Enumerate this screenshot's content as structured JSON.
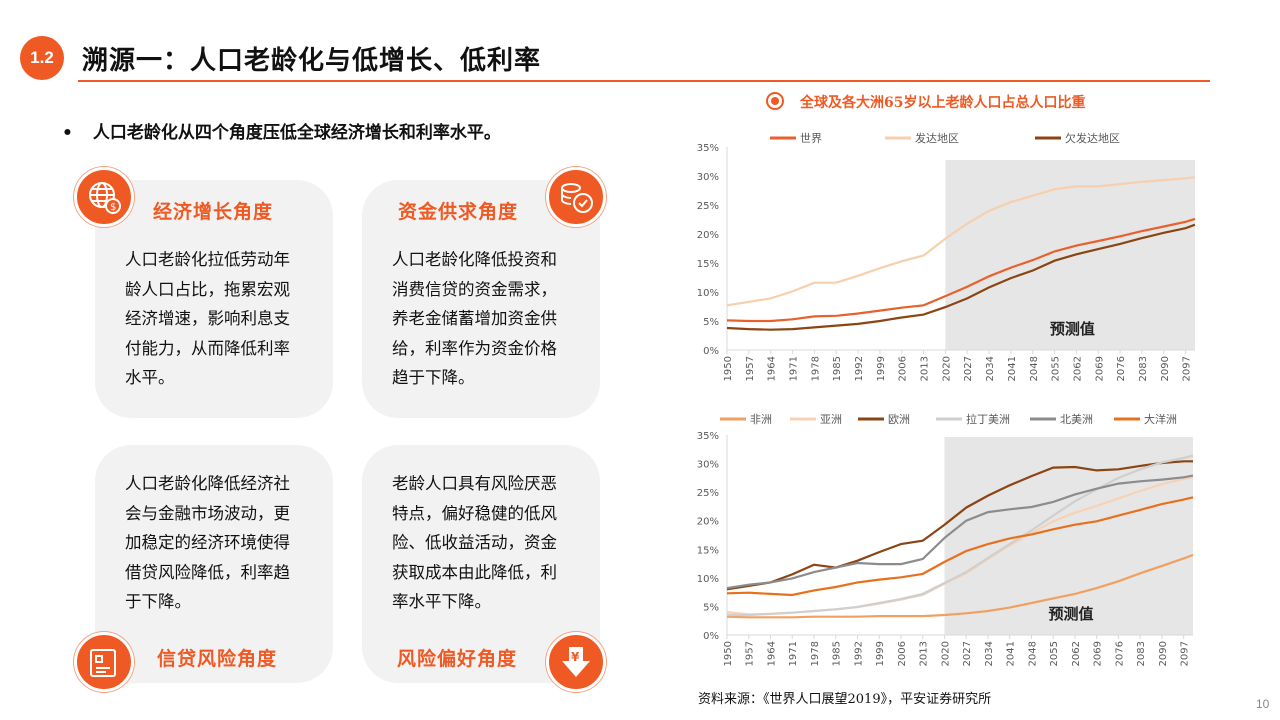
{
  "header": {
    "section": "1.2",
    "title": "溯源一：人口老龄化与低增长、低利率"
  },
  "bullet": "人口老龄化从四个角度压低全球经济增长和利率水平。",
  "cards": [
    {
      "label": "经济增长角度",
      "icon": "globe-dollar-icon",
      "lines": [
        "人口老龄化拉低劳动年",
        "龄人口占比，拖累宏观",
        "经济增速，影响利息支",
        "付能力，从而降低利率",
        "水平。"
      ]
    },
    {
      "label": "资金供求角度",
      "icon": "coins-check-icon",
      "lines": [
        "人口老龄化降低投资和",
        "消费信贷的资金需求，",
        "养老金储蓄增加资金供",
        "给，利率作为资金价格",
        "趋于下降。"
      ]
    },
    {
      "label": "信贷风险角度",
      "icon": "credit-card-icon",
      "lines": [
        "人口老龄化降低经济社",
        "会与金融市场波动，更",
        "加稳定的经济环境使得",
        "借贷风险降低，利率趋",
        "于下降。"
      ]
    },
    {
      "label": "风险偏好角度",
      "icon": "yuan-down-arrow-icon",
      "lines": [
        "老龄人口具有风险厌恶",
        "特点，偏好稳健的低风",
        "险、低收益活动，资金",
        "获取成本由此降低，利",
        "率水平下降。"
      ]
    }
  ],
  "chart_section_title": "全球及各大洲65岁以上老龄人口占总人口比重",
  "chart_data": [
    {
      "type": "line",
      "title": "全球及各大洲65岁以上老龄人口占总人口比重",
      "ylim": [
        0,
        35
      ],
      "yticks": [
        "0%",
        "5%",
        "10%",
        "15%",
        "20%",
        "25%",
        "30%",
        "35%"
      ],
      "xticks": [
        "1950",
        "1957",
        "1964",
        "1971",
        "1978",
        "1985",
        "1992",
        "1999",
        "2006",
        "2013",
        "2020",
        "2027",
        "2034",
        "2041",
        "2048",
        "2055",
        "2062",
        "2069",
        "2076",
        "2083",
        "2090",
        "2097"
      ],
      "x": [
        1950,
        1957,
        1964,
        1971,
        1978,
        1985,
        1992,
        1999,
        2006,
        2013,
        2020,
        2027,
        2034,
        2041,
        2048,
        2055,
        2062,
        2069,
        2076,
        2083,
        2090,
        2097,
        2100
      ],
      "forecast_start": 2020,
      "annotation": "预测值",
      "legend": "top",
      "series": [
        {
          "name": "世界",
          "color": "#e8602c",
          "values": [
            5.1,
            5.0,
            5.0,
            5.3,
            5.8,
            5.9,
            6.3,
            6.8,
            7.3,
            7.7,
            9.3,
            10.9,
            12.7,
            14.2,
            15.5,
            17.0,
            18.0,
            18.8,
            19.6,
            20.5,
            21.3,
            22.1,
            22.6
          ]
        },
        {
          "name": "发达地区",
          "color": "#f6cfae",
          "values": [
            7.7,
            8.3,
            8.9,
            10.1,
            11.6,
            11.6,
            12.8,
            14.1,
            15.3,
            16.3,
            19.2,
            21.8,
            24.0,
            25.5,
            26.6,
            27.7,
            28.2,
            28.2,
            28.6,
            29.0,
            29.3,
            29.6,
            29.8
          ]
        },
        {
          "name": "欠发达地区",
          "color": "#8b4513",
          "values": [
            3.8,
            3.6,
            3.5,
            3.6,
            3.9,
            4.2,
            4.5,
            5.0,
            5.6,
            6.1,
            7.4,
            8.9,
            10.8,
            12.4,
            13.7,
            15.4,
            16.5,
            17.4,
            18.3,
            19.3,
            20.2,
            21.0,
            21.6
          ]
        }
      ]
    },
    {
      "type": "line",
      "ylim": [
        0,
        35
      ],
      "yticks": [
        "0%",
        "5%",
        "10%",
        "15%",
        "20%",
        "25%",
        "30%",
        "35%"
      ],
      "xticks": [
        "1950",
        "1957",
        "1964",
        "1971",
        "1978",
        "1985",
        "1992",
        "1999",
        "2006",
        "2013",
        "2020",
        "2027",
        "2034",
        "2041",
        "2048",
        "2055",
        "2062",
        "2069",
        "2076",
        "2083",
        "2090",
        "2097"
      ],
      "x": [
        1950,
        1957,
        1964,
        1971,
        1978,
        1985,
        1992,
        1999,
        2006,
        2013,
        2020,
        2027,
        2034,
        2041,
        2048,
        2055,
        2062,
        2069,
        2076,
        2083,
        2090,
        2097,
        2100
      ],
      "forecast_start": 2020,
      "annotation": "预测值",
      "legend": "top",
      "series": [
        {
          "name": "非洲",
          "color": "#f0a060",
          "values": [
            3.2,
            3.1,
            3.1,
            3.1,
            3.2,
            3.2,
            3.2,
            3.3,
            3.3,
            3.3,
            3.5,
            3.8,
            4.2,
            4.8,
            5.6,
            6.4,
            7.2,
            8.2,
            9.4,
            10.8,
            12.1,
            13.4,
            14.0
          ]
        },
        {
          "name": "亚洲",
          "color": "#f8d2b4",
          "values": [
            4.0,
            3.6,
            3.7,
            3.9,
            4.2,
            4.5,
            4.9,
            5.5,
            6.2,
            7.0,
            9.0,
            10.8,
            13.3,
            15.7,
            17.8,
            19.9,
            21.4,
            22.6,
            23.9,
            25.2,
            26.4,
            27.3,
            27.6
          ]
        },
        {
          "name": "欧洲",
          "color": "#8b4513",
          "values": [
            8.0,
            8.6,
            9.2,
            10.6,
            12.3,
            11.8,
            13.0,
            14.5,
            15.9,
            16.5,
            19.3,
            22.3,
            24.4,
            26.2,
            27.8,
            29.3,
            29.4,
            28.8,
            29.0,
            29.6,
            30.1,
            30.4,
            30.4
          ]
        },
        {
          "name": "拉丁美洲",
          "color": "#cfcfcf",
          "values": [
            3.5,
            3.5,
            3.7,
            3.9,
            4.2,
            4.5,
            4.9,
            5.6,
            6.3,
            7.2,
            9.1,
            11.0,
            13.5,
            15.9,
            18.3,
            20.9,
            23.4,
            25.5,
            27.5,
            29.0,
            30.2,
            31.0,
            31.4
          ]
        },
        {
          "name": "北美洲",
          "color": "#8c8c8c",
          "values": [
            8.2,
            8.8,
            9.2,
            9.9,
            11.0,
            11.8,
            12.6,
            12.4,
            12.4,
            13.3,
            17.0,
            20.0,
            21.5,
            22.0,
            22.4,
            23.3,
            24.6,
            25.6,
            26.5,
            26.9,
            27.2,
            27.6,
            27.9
          ]
        },
        {
          "name": "大洋洲",
          "color": "#e8701c",
          "values": [
            7.3,
            7.4,
            7.2,
            7.0,
            7.8,
            8.4,
            9.2,
            9.7,
            10.1,
            10.7,
            12.8,
            14.7,
            15.9,
            16.9,
            17.6,
            18.5,
            19.3,
            19.9,
            20.9,
            21.9,
            22.9,
            23.7,
            24.1
          ]
        }
      ]
    }
  ],
  "source": "资料来源：《世界人口展望2019》，平安证券研究所",
  "page_number": "10"
}
